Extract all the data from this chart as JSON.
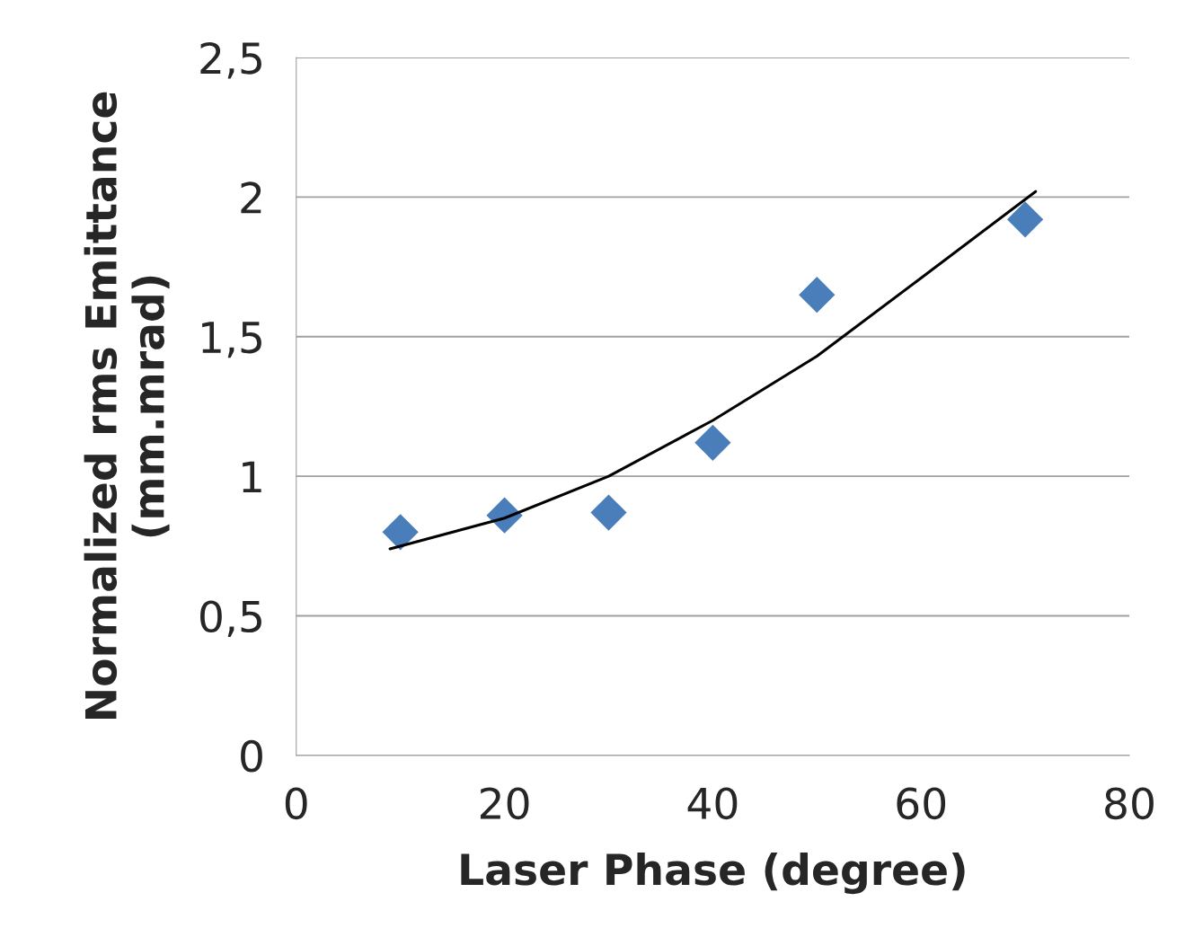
{
  "chart_data": {
    "type": "scatter",
    "xlabel": "Laser Phase (degree)",
    "ylabel": "Normalized rms Emittance\n(mm.mrad)",
    "series": [
      {
        "color": "#4a7ebb",
        "marker": "diamond",
        "x": [
          10,
          20,
          30,
          40,
          50,
          70
        ],
        "values": [
          0.8,
          0.86,
          0.87,
          1.12,
          1.65,
          1.92
        ]
      },
      {
        "type": "line",
        "color": "#000000",
        "marker": "none",
        "line_style": "solid",
        "x": [
          9,
          20,
          30,
          40,
          50,
          60,
          71
        ],
        "values": [
          0.74,
          0.85,
          1.0,
          1.2,
          1.43,
          1.71,
          2.02
        ]
      }
    ],
    "xlim": [
      0,
      80
    ],
    "xticks": [
      0,
      20,
      40,
      60,
      80
    ],
    "ylim": [
      0,
      2.5
    ],
    "yticks": [
      0,
      {
        "value": 0.5,
        "label": "0,5"
      },
      1,
      {
        "value": 1.5,
        "label": "1,5"
      },
      2,
      {
        "value": 2.5,
        "label": "2,5"
      }
    ],
    "grid": "y",
    "legend": false
  }
}
